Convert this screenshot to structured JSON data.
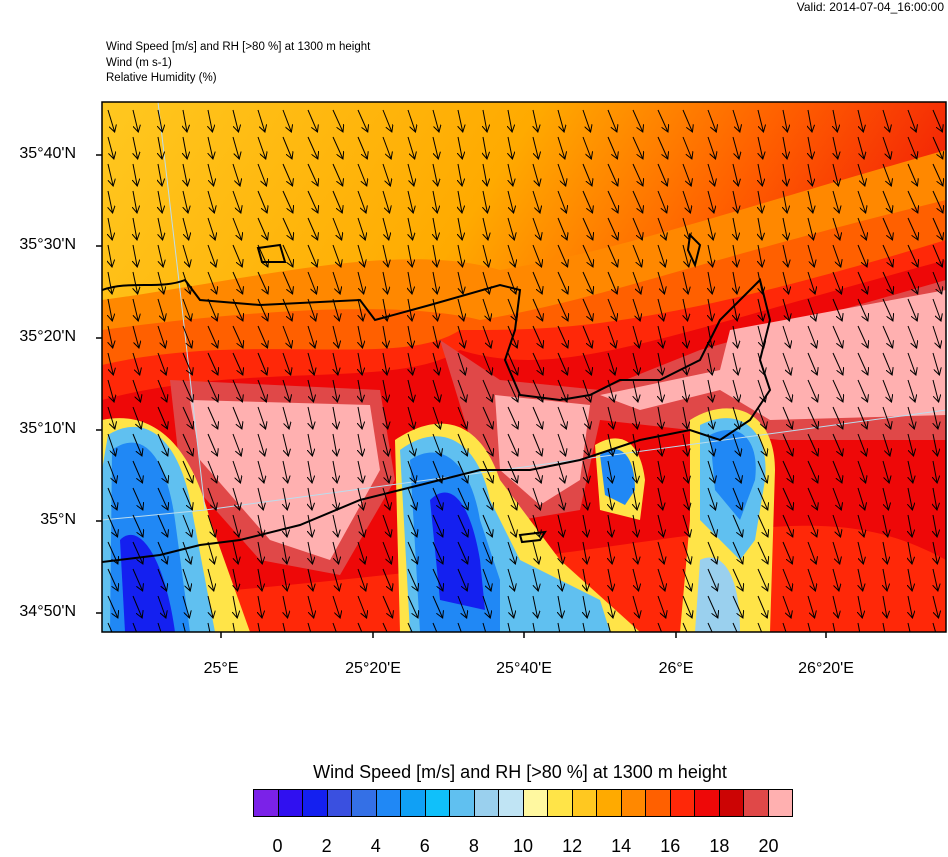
{
  "valid_time": "Valid: 2014-07-04_16:00:00",
  "header": {
    "line1": "Wind Speed [m/s] and RH [>80 %] at 1300 m height",
    "line2": "Wind   (m s-1)",
    "line3": "Relative Humidity   (%)"
  },
  "lat_labels": [
    "35°40'N",
    "35°30'N",
    "35°20'N",
    "35°10'N",
    "35°N",
    "34°50'N"
  ],
  "lon_labels": [
    "25°E",
    "25°20'E",
    "25°40'E",
    "26°E",
    "26°20'E"
  ],
  "colorbar": {
    "title": "Wind Speed [m/s] and RH [>80 %] at 1300 m height",
    "labels": [
      "0",
      "2",
      "4",
      "6",
      "8",
      "10",
      "12",
      "14",
      "16",
      "18",
      "20"
    ],
    "colors": [
      "#7B22E8",
      "#3010F0",
      "#1420F0",
      "#3A50E0",
      "#3470E6",
      "#2088F5",
      "#10A0F5",
      "#10C0FA",
      "#60C0F0",
      "#9AD0EE",
      "#C0E4F4",
      "#FFF8A0",
      "#FFE448",
      "#FFC820",
      "#FFAA00",
      "#FF8800",
      "#FF6000",
      "#FF2808",
      "#EE0808",
      "#CC0404",
      "#E04848",
      "#FFB0B0"
    ]
  }
}
